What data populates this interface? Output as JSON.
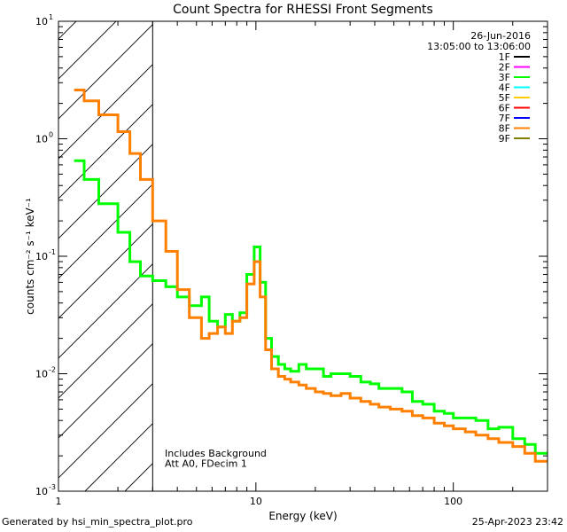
{
  "chart_data": {
    "type": "line",
    "title": "Count Spectra for RHESSI Front Segments",
    "xlabel": "Energy (keV)",
    "ylabel": "counts cm⁻² s⁻¹ keV⁻¹",
    "xscale": "log",
    "yscale": "log",
    "xlim": [
      1,
      300
    ],
    "ylim": [
      0.001,
      10
    ],
    "x_ticks": [
      {
        "value": 1,
        "label": "1"
      },
      {
        "value": 10,
        "label": "10"
      },
      {
        "value": 100,
        "label": "100"
      }
    ],
    "y_ticks": [
      {
        "value": 10,
        "label": "10",
        "exp": "1"
      },
      {
        "value": 1,
        "label": "10",
        "exp": "0"
      },
      {
        "value": 0.1,
        "label": "10",
        "exp": "-1"
      },
      {
        "value": 0.01,
        "label": "10",
        "exp": "-2"
      },
      {
        "value": 0.001,
        "label": "10",
        "exp": "-3"
      }
    ],
    "date": "26-Jun-2016",
    "time_range": "13:05:00 to 13:06:00",
    "legend": [
      {
        "name": "1F",
        "color": "#000000"
      },
      {
        "name": "2F",
        "color": "#ff00ff"
      },
      {
        "name": "3F",
        "color": "#00ff00"
      },
      {
        "name": "4F",
        "color": "#00ffff"
      },
      {
        "name": "5F",
        "color": "#ffcc00"
      },
      {
        "name": "6F",
        "color": "#ff0000"
      },
      {
        "name": "7F",
        "color": "#0000ff"
      },
      {
        "name": "8F",
        "color": "#ff8000"
      },
      {
        "name": "9F",
        "color": "#808000"
      }
    ],
    "hatched_region": {
      "x_start": 1,
      "x_end": 3
    },
    "annotation_lines": [
      "Includes Background",
      "Att A0, FDecim 1"
    ],
    "series": [
      {
        "name": "3F",
        "color": "#00ff00",
        "edges": [
          1.2,
          1.35,
          1.6,
          2.0,
          2.3,
          2.6,
          3.0,
          3.5,
          4.0,
          4.6,
          5.3,
          5.8,
          6.4,
          7.0,
          7.6,
          8.3,
          9.0,
          9.8,
          10.5,
          11.2,
          12.0,
          13.0,
          14.0,
          15.0,
          16.5,
          18.0,
          20.0,
          22.0,
          24.0,
          27.0,
          30.0,
          34.0,
          38.0,
          42.0,
          48.0,
          55.0,
          62.0,
          70.0,
          80.0,
          90.0,
          100.0,
          115.0,
          130.0,
          150.0,
          170.0,
          200.0,
          230.0,
          260.0,
          300.0
        ],
        "values": [
          0.65,
          0.45,
          0.28,
          0.16,
          0.09,
          0.068,
          0.062,
          0.055,
          0.045,
          0.038,
          0.045,
          0.028,
          0.025,
          0.032,
          0.028,
          0.033,
          0.07,
          0.12,
          0.06,
          0.02,
          0.014,
          0.012,
          0.011,
          0.0105,
          0.012,
          0.011,
          0.011,
          0.0095,
          0.01,
          0.01,
          0.0095,
          0.0085,
          0.0082,
          0.0075,
          0.0075,
          0.007,
          0.0058,
          0.0055,
          0.0048,
          0.0046,
          0.0042,
          0.0042,
          0.004,
          0.0034,
          0.0035,
          0.0028,
          0.0025,
          0.0021
        ]
      },
      {
        "name": "8F",
        "color": "#ff8000",
        "edges": [
          1.2,
          1.35,
          1.6,
          2.0,
          2.3,
          2.6,
          3.0,
          3.5,
          4.0,
          4.6,
          5.3,
          5.8,
          6.4,
          7.0,
          7.6,
          8.3,
          9.0,
          9.8,
          10.5,
          11.2,
          12.0,
          13.0,
          14.0,
          15.0,
          16.5,
          18.0,
          20.0,
          22.0,
          24.0,
          27.0,
          30.0,
          34.0,
          38.0,
          42.0,
          48.0,
          55.0,
          62.0,
          70.0,
          80.0,
          90.0,
          100.0,
          115.0,
          130.0,
          150.0,
          170.0,
          200.0,
          230.0,
          260.0,
          300.0
        ],
        "values": [
          2.6,
          2.1,
          1.6,
          1.15,
          0.75,
          0.45,
          0.2,
          0.11,
          0.052,
          0.03,
          0.02,
          0.022,
          0.025,
          0.022,
          0.028,
          0.03,
          0.058,
          0.09,
          0.045,
          0.016,
          0.011,
          0.0095,
          0.009,
          0.0085,
          0.008,
          0.0075,
          0.007,
          0.0068,
          0.0065,
          0.0068,
          0.0062,
          0.0058,
          0.0055,
          0.0052,
          0.005,
          0.0048,
          0.0044,
          0.0042,
          0.0038,
          0.0036,
          0.0034,
          0.0032,
          0.003,
          0.0028,
          0.0026,
          0.0024,
          0.0021,
          0.0018
        ]
      }
    ]
  },
  "footer": {
    "generated_by": "Generated by hsi_min_spectra_plot.pro",
    "timestamp": "25-Apr-2023 23:42"
  }
}
